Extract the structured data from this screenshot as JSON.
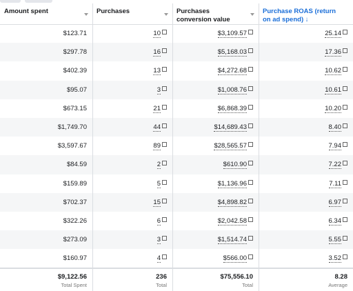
{
  "table": {
    "headers": [
      "Amount spent",
      "Purchases",
      "Purchases conversion value",
      "Purchase ROAS (return on ad spend) ↓"
    ],
    "rows": [
      [
        "$123.71",
        "10",
        "$3,109.57",
        "25.14"
      ],
      [
        "$297.78",
        "16",
        "$5,168.03",
        "17.36"
      ],
      [
        "$402.39",
        "13",
        "$4,272.68",
        "10.62"
      ],
      [
        "$95.07",
        "3",
        "$1,008.76",
        "10.61"
      ],
      [
        "$673.15",
        "21",
        "$6,868.39",
        "10.20"
      ],
      [
        "$1,749.70",
        "44",
        "$14,689.43",
        "8.40"
      ],
      [
        "$3,597.67",
        "89",
        "$28,565.57",
        "7.94"
      ],
      [
        "$84.59",
        "2",
        "$610.90",
        "7.22"
      ],
      [
        "$159.89",
        "5",
        "$1,136.96",
        "7.11"
      ],
      [
        "$702.37",
        "15",
        "$4,898.82",
        "6.97"
      ],
      [
        "$322.26",
        "6",
        "$2,042.58",
        "6.34"
      ],
      [
        "$273.09",
        "3",
        "$1,514.74",
        "5.55"
      ],
      [
        "$160.97",
        "4",
        "$566.00",
        "3.52"
      ]
    ],
    "totals": [
      {
        "value": "$9,122.56",
        "label": "Total Spent"
      },
      {
        "value": "236",
        "label": "Total"
      },
      {
        "value": "$75,556.10",
        "label": "Total"
      },
      {
        "value": "8.28",
        "label": "Average"
      }
    ]
  }
}
